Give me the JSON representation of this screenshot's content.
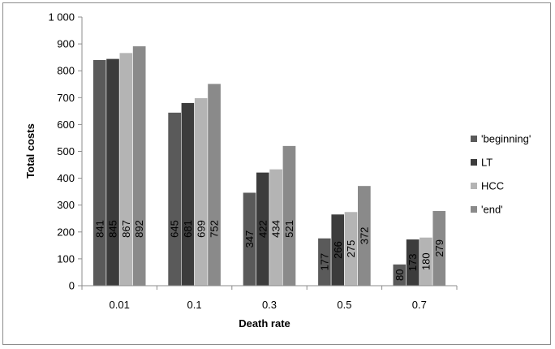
{
  "chart_data": {
    "type": "bar",
    "xlabel": "Death rate",
    "ylabel": "Total costs",
    "ylim": [
      0,
      1000
    ],
    "y_ticks": [
      0,
      100,
      200,
      300,
      400,
      500,
      600,
      700,
      800,
      900,
      1000
    ],
    "y_tick_labels": [
      "0",
      "100",
      "200",
      "300",
      "400",
      "500",
      "600",
      "700",
      "800",
      "900",
      "1 000"
    ],
    "categories": [
      "0.01",
      "0.1",
      "0.3",
      "0.5",
      "0.7"
    ],
    "series": [
      {
        "name": "'beginning'",
        "color": "#5a5a5a",
        "values": [
          841,
          645,
          347,
          177,
          80
        ]
      },
      {
        "name": "LT",
        "color": "#3c3c3c",
        "values": [
          845,
          681,
          422,
          266,
          173
        ]
      },
      {
        "name": "HCC",
        "color": "#b4b4b4",
        "values": [
          867,
          699,
          434,
          275,
          180
        ]
      },
      {
        "name": "'end'",
        "color": "#8a8a8a",
        "values": [
          892,
          752,
          521,
          372,
          279
        ]
      }
    ],
    "grid": false,
    "legend": "right"
  }
}
